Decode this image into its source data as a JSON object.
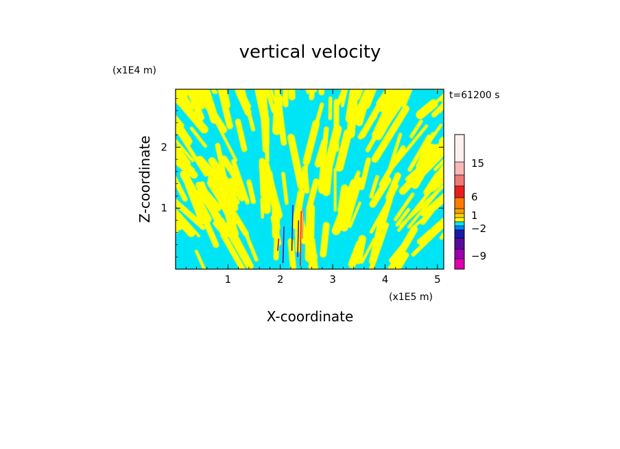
{
  "chart_data": {
    "type": "heatmap",
    "title": "vertical velocity",
    "xlabel": "X-coordinate",
    "ylabel": "Z-coordinate",
    "x_scale_label": "(x1E5 m)",
    "y_scale_label": "(x1E4 m)",
    "time_label": "t=61200 s",
    "xlim": [
      0,
      5.12
    ],
    "ylim": [
      0,
      2.95
    ],
    "x_ticks": [
      1,
      2,
      3,
      4,
      5
    ],
    "y_ticks": [
      1,
      2
    ],
    "x_tick_labels": [
      "1",
      "2",
      "3",
      "4",
      "5"
    ],
    "y_tick_labels": [
      "1",
      "2"
    ],
    "field_colors": {
      "positive_weak": "#ffff00",
      "negative_weak": "#00e5f5"
    },
    "colorbar": {
      "labels": [
        {
          "text": "15",
          "value": 15
        },
        {
          "text": "6",
          "value": 6
        },
        {
          "text": "1",
          "value": 1
        },
        {
          "text": "−2",
          "value": -2
        },
        {
          "text": "−9",
          "value": -9
        }
      ],
      "colors_top_to_bottom": [
        "#fff0f0",
        "#f8b8b8",
        "#f07878",
        "#e81e1e",
        "#ff7a00",
        "#f5a000",
        "#ffd200",
        "#ffff00",
        "#00e5f5",
        "#0080ff",
        "#1a1aa8",
        "#5a0aa0",
        "#9a00b0",
        "#e000b0"
      ]
    }
  }
}
